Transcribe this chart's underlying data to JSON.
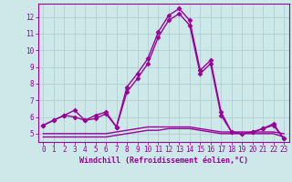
{
  "xlabel": "Windchill (Refroidissement éolien,°C)",
  "ylabel": "",
  "bg_color": "#cce8e8",
  "line_color": "#990099",
  "x": [
    0,
    1,
    2,
    3,
    4,
    5,
    6,
    7,
    8,
    9,
    10,
    11,
    12,
    13,
    14,
    15,
    16,
    17,
    18,
    19,
    20,
    21,
    22,
    23
  ],
  "series1": [
    5.5,
    5.8,
    6.1,
    6.4,
    5.8,
    6.1,
    6.3,
    5.4,
    7.8,
    8.6,
    9.5,
    11.1,
    12.1,
    12.5,
    11.8,
    8.8,
    9.4,
    6.3,
    5.1,
    5.0,
    5.1,
    5.3,
    5.6,
    4.7
  ],
  "series2": [
    5.5,
    5.8,
    6.1,
    6.0,
    5.8,
    5.9,
    6.2,
    5.4,
    7.5,
    8.3,
    9.2,
    10.8,
    11.8,
    12.2,
    11.5,
    8.6,
    9.2,
    6.1,
    5.1,
    5.0,
    5.1,
    5.3,
    5.5,
    4.7
  ],
  "series3": [
    4.8,
    4.8,
    4.8,
    4.8,
    4.8,
    4.8,
    4.8,
    4.9,
    5.0,
    5.1,
    5.2,
    5.2,
    5.3,
    5.3,
    5.3,
    5.2,
    5.1,
    5.0,
    5.0,
    5.0,
    5.0,
    5.0,
    5.0,
    4.8
  ],
  "series4": [
    5.0,
    5.0,
    5.0,
    5.0,
    5.0,
    5.0,
    5.0,
    5.1,
    5.2,
    5.3,
    5.4,
    5.4,
    5.4,
    5.4,
    5.4,
    5.3,
    5.2,
    5.1,
    5.1,
    5.1,
    5.1,
    5.1,
    5.1,
    5.0
  ],
  "ylim": [
    4.5,
    12.8
  ],
  "yticks": [
    5,
    6,
    7,
    8,
    9,
    10,
    11,
    12
  ],
  "xticks": [
    0,
    1,
    2,
    3,
    4,
    5,
    6,
    7,
    8,
    9,
    10,
    11,
    12,
    13,
    14,
    15,
    16,
    17,
    18,
    19,
    20,
    21,
    22,
    23
  ],
  "grid_color": "#b0d0d0",
  "tick_color": "#990099",
  "label_color": "#990099",
  "marker": "D",
  "markersize": 2.5,
  "linewidth": 1.0
}
